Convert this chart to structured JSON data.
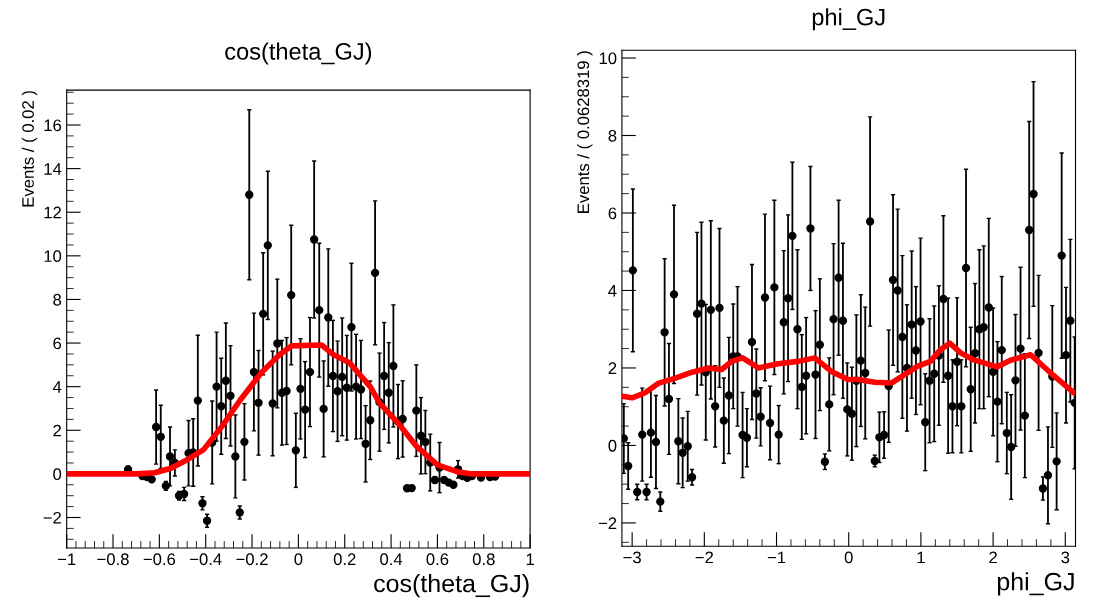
{
  "chart_data": [
    {
      "type": "scatter",
      "title": "cos(theta_GJ)",
      "xlabel": "cos(theta_GJ)",
      "ylabel": "Events / ( 0.02 )",
      "xlim": [
        -1,
        1
      ],
      "ylim": [
        -3.4,
        17.6
      ],
      "xticks": [
        {
          "value": -1,
          "label": "−1"
        },
        {
          "value": -0.8,
          "label": "−0.8"
        },
        {
          "value": -0.6,
          "label": "−0.6"
        },
        {
          "value": -0.4,
          "label": "−0.4"
        },
        {
          "value": -0.2,
          "label": "−0.2"
        },
        0,
        0.2,
        0.4,
        0.6,
        0.8,
        1
      ],
      "yticks": [
        {
          "value": -2,
          "label": "−2"
        },
        0,
        2,
        4,
        6,
        8,
        10,
        12,
        14,
        16
      ],
      "series": [
        {
          "marker": "circle",
          "color": "#000000",
          "x": [
            -0.735,
            -0.673,
            -0.653,
            -0.633,
            -0.614,
            -0.594,
            -0.572,
            -0.554,
            -0.533,
            -0.515,
            -0.493,
            -0.474,
            -0.454,
            -0.434,
            -0.414,
            -0.394,
            -0.372,
            -0.353,
            -0.333,
            -0.313,
            -0.293,
            -0.272,
            -0.253,
            -0.233,
            -0.212,
            -0.192,
            -0.172,
            -0.152,
            -0.132,
            -0.111,
            -0.091,
            -0.071,
            -0.051,
            -0.031,
            -0.011,
            0.009,
            0.029,
            0.05,
            0.068,
            0.09,
            0.109,
            0.129,
            0.149,
            0.169,
            0.189,
            0.209,
            0.229,
            0.249,
            0.27,
            0.29,
            0.31,
            0.331,
            0.35,
            0.37,
            0.39,
            0.41,
            0.43,
            0.45,
            0.469,
            0.489,
            0.509,
            0.529,
            0.548,
            0.569,
            0.589,
            0.609,
            0.629,
            0.649,
            0.669,
            0.689,
            0.709,
            0.729,
            0.749,
            0.788,
            0.827,
            0.849
          ],
          "values": [
            0.2,
            -0.1,
            -0.15,
            -0.25,
            2.15,
            1.7,
            -0.55,
            0.8,
            0.5,
            -1.0,
            -0.92,
            0.95,
            0.98,
            3.36,
            -1.35,
            -2.15,
            1.44,
            4.0,
            3.1,
            4.27,
            3.58,
            0.8,
            -1.77,
            1.47,
            12.8,
            4.67,
            3.26,
            7.34,
            10.48,
            3.23,
            5.98,
            3.72,
            3.8,
            8.2,
            1.08,
            3.9,
            2.95,
            4.67,
            10.75,
            7.51,
            2.98,
            7.17,
            4.49,
            3.79,
            4.45,
            3.95,
            6.73,
            4.0,
            3.87,
            1.38,
            2.46,
            9.22,
            3.29,
            4.49,
            3.72,
            4.95,
            2.4,
            2.52,
            -0.66,
            -0.65,
            2.9,
            1.75,
            1.46,
            0.52,
            -0.28,
            0.29,
            -0.28,
            -0.4,
            -0.5,
            0.21,
            -0.1,
            -0.18,
            -0.1,
            -0.17,
            -0.15,
            -0.12
          ],
          "errors": [
            0.15,
            0.1,
            0.1,
            0.1,
            1.7,
            1.45,
            0.2,
            1.35,
            0.6,
            0.2,
            0.3,
            1.5,
            1.55,
            3.0,
            0.3,
            0.3,
            1.9,
            2.5,
            2.2,
            2.65,
            2.3,
            1.9,
            0.3,
            1.75,
            3.9,
            2.7,
            2.4,
            2.8,
            3.4,
            2.4,
            2.95,
            2.4,
            2.45,
            3.2,
            1.7,
            2.3,
            2.2,
            2.5,
            3.6,
            3.07,
            2.2,
            3.15,
            2.55,
            2.3,
            2.7,
            2.4,
            2.93,
            2.4,
            2.25,
            1.75,
            1.8,
            3.3,
            2.25,
            2.45,
            2.3,
            2.8,
            1.7,
            1.75,
            0.1,
            0.1,
            2.1,
            1.75,
            1.45,
            1.3,
            0.15,
            1.15,
            0.1,
            0.1,
            0.1,
            0.4,
            0.1,
            0.1,
            0.1,
            0.1,
            0.1,
            0.1
          ]
        },
        {
          "type": "line",
          "color": "#ff0000",
          "x": [
            -1,
            -0.7,
            -0.62,
            -0.55,
            -0.48,
            -0.41,
            -0.33,
            -0.25,
            -0.16,
            -0.08,
            -0.03,
            0.1,
            0.15,
            0.22,
            0.31,
            0.35,
            0.43,
            0.51,
            0.6,
            0.685,
            0.75,
            1
          ],
          "values": [
            0,
            0,
            0.05,
            0.26,
            0.65,
            1.1,
            2.18,
            3.4,
            4.64,
            5.48,
            5.87,
            5.91,
            5.48,
            5.1,
            4.0,
            3.26,
            2.33,
            1.26,
            0.41,
            0.1,
            0,
            0
          ]
        }
      ]
    },
    {
      "type": "scatter",
      "title": "phi_GJ",
      "xlabel": "phi_GJ",
      "ylabel": "Events / ( 0.0628319 )",
      "xlim": [
        -3.1416,
        3.1416
      ],
      "ylim": [
        -2.6,
        10.2
      ],
      "xticks": [
        {
          "value": -3,
          "label": "−3"
        },
        {
          "value": -2,
          "label": "−2"
        },
        {
          "value": -1,
          "label": "−1"
        },
        0,
        1,
        2,
        3
      ],
      "yticks": [
        {
          "value": -2,
          "label": "−2"
        },
        0,
        2,
        4,
        6,
        8,
        10
      ],
      "series": [
        {
          "marker": "circle",
          "color": "#000000",
          "x": [
            -3.115,
            -3.055,
            -2.99,
            -2.93,
            -2.86,
            -2.8,
            -2.74,
            -2.67,
            -2.61,
            -2.55,
            -2.49,
            -2.42,
            -2.36,
            -2.3,
            -2.23,
            -2.17,
            -2.1,
            -2.04,
            -1.98,
            -1.91,
            -1.85,
            -1.79,
            -1.73,
            -1.66,
            -1.6,
            -1.54,
            -1.47,
            -1.41,
            -1.34,
            -1.28,
            -1.22,
            -1.16,
            -1.09,
            -1.03,
            -0.97,
            -0.9,
            -0.84,
            -0.78,
            -0.71,
            -0.65,
            -0.59,
            -0.53,
            -0.46,
            -0.4,
            -0.33,
            -0.27,
            -0.21,
            -0.14,
            -0.08,
            -0.02,
            0.044,
            0.106,
            0.168,
            0.229,
            0.296,
            0.361,
            0.425,
            0.49,
            0.554,
            0.614,
            0.678,
            0.743,
            0.807,
            0.872,
            0.931,
            0.995,
            1.06,
            1.12,
            1.184,
            1.249,
            1.312,
            1.377,
            1.437,
            1.501,
            1.56,
            1.625,
            1.69,
            1.75,
            1.81,
            1.87,
            1.94,
            2.0,
            2.06,
            2.12,
            2.19,
            2.25,
            2.31,
            2.38,
            2.44,
            2.5,
            2.56,
            2.63,
            2.69,
            2.76,
            2.82,
            2.88,
            2.95,
            3.01,
            3.07,
            3.13
          ],
          "values": [
            0.18,
            -0.53,
            4.52,
            -1.2,
            0.28,
            -1.2,
            0.33,
            0.09,
            -1.45,
            2.92,
            1.2,
            3.9,
            0.11,
            -0.19,
            -0.02,
            -0.82,
            3.4,
            3.66,
            1.89,
            3.5,
            1.01,
            3.55,
            0.64,
            1.29,
            2.3,
            2.3,
            0.27,
            0.2,
            2.67,
            1.34,
            0.74,
            3.82,
            0.58,
            4.08,
            0.28,
            3.18,
            3.8,
            5.41,
            3.0,
            1.51,
            1.8,
            5.6,
            1.83,
            2.6,
            -0.42,
            1.06,
            3.26,
            4.33,
            3.22,
            0.93,
            0.82,
            1.67,
            2.19,
            1.87,
            5.78,
            -0.4,
            0.21,
            0.27,
            1.53,
            4.27,
            4.0,
            2.8,
            2.0,
            3.12,
            2.45,
            3.2,
            0.6,
            1.67,
            1.85,
            2.32,
            3.78,
            1.8,
            1.01,
            2.16,
            1.01,
            4.58,
            1.45,
            2.38,
            3.0,
            3.05,
            3.56,
            1.9,
            1.13,
            2.46,
            0.32,
            -0.04,
            1.68,
            2.5,
            0.77,
            5.56,
            6.49,
            2.39,
            -1.11,
            -0.77,
            1.78,
            -0.41,
            4.9,
            2.33,
            3.22,
            1.1
          ],
          "errors": [
            0.9,
            0.6,
            2.1,
            0.2,
            1.2,
            0.2,
            1.15,
            1.2,
            0.25,
            1.9,
            1.43,
            2.3,
            1.1,
            0.9,
            0.9,
            0.2,
            2.1,
            2.1,
            1.75,
            2.3,
            1.05,
            2.05,
            1.1,
            1.5,
            1.35,
            1.8,
            1.1,
            0.75,
            2.0,
            1.15,
            0.75,
            2.15,
            0.95,
            2.25,
            0.75,
            1.85,
            2.15,
            1.9,
            2.05,
            1.35,
            1.5,
            1.6,
            1.65,
            1.7,
            0.2,
            1.2,
            1.95,
            2.0,
            2.0,
            1.2,
            1.2,
            1.7,
            1.7,
            1.7,
            2.7,
            0.15,
            0.65,
            0.6,
            1.45,
            2.2,
            2.1,
            2.1,
            1.63,
            1.9,
            1.65,
            2.15,
            1.25,
            1.6,
            1.75,
            1.8,
            2.15,
            2.0,
            1.2,
            1.65,
            1.2,
            2.55,
            1.6,
            1.8,
            2.05,
            2.1,
            2.3,
            1.65,
            1.55,
            1.9,
            1.05,
            1.35,
            1.7,
            2.1,
            1.6,
            2.8,
            2.9,
            2.0,
            0.3,
            1.25,
            1.83,
            1.25,
            2.65,
            1.75,
            2.1,
            1.7
          ]
        },
        {
          "type": "line",
          "color": "#ff0000",
          "x": [
            -3.14,
            -3.0,
            -2.82,
            -2.63,
            -2.4,
            -2.17,
            -1.94,
            -1.76,
            -1.62,
            -1.47,
            -1.25,
            -0.98,
            -0.7,
            -0.47,
            -0.24,
            -0.01,
            0.13,
            0.36,
            0.59,
            0.7,
            0.95,
            1.13,
            1.27,
            1.4,
            1.55,
            1.73,
            2.06,
            2.24,
            2.52,
            2.84,
            3.12
          ],
          "values": [
            1.27,
            1.23,
            1.36,
            1.61,
            1.74,
            1.89,
            2.0,
            1.96,
            2.17,
            2.26,
            2.0,
            2.11,
            2.17,
            2.26,
            1.91,
            1.7,
            1.7,
            1.63,
            1.61,
            1.74,
            2.04,
            2.17,
            2.47,
            2.64,
            2.39,
            2.21,
            2.03,
            2.2,
            2.34,
            1.8,
            1.36
          ]
        }
      ]
    }
  ]
}
